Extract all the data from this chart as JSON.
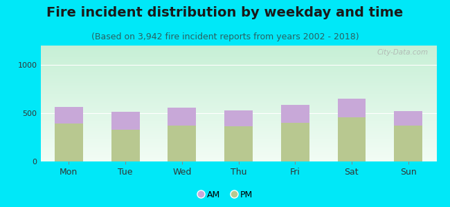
{
  "title": "Fire incident distribution by weekday and time",
  "subtitle": "(Based on 3,942 fire incident reports from years 2002 - 2018)",
  "days": [
    "Mon",
    "Tue",
    "Wed",
    "Thu",
    "Fri",
    "Sat",
    "Sun"
  ],
  "pm_values": [
    390,
    330,
    375,
    365,
    400,
    455,
    370
  ],
  "am_values": [
    175,
    185,
    185,
    165,
    185,
    195,
    155
  ],
  "am_color": "#c8a8d8",
  "pm_color": "#b8c890",
  "background_outer": "#00e8f8",
  "ylim": [
    0,
    1200
  ],
  "yticks": [
    0,
    500,
    1000
  ],
  "bar_width": 0.5,
  "title_fontsize": 14,
  "subtitle_fontsize": 9,
  "watermark": "City-Data.com"
}
